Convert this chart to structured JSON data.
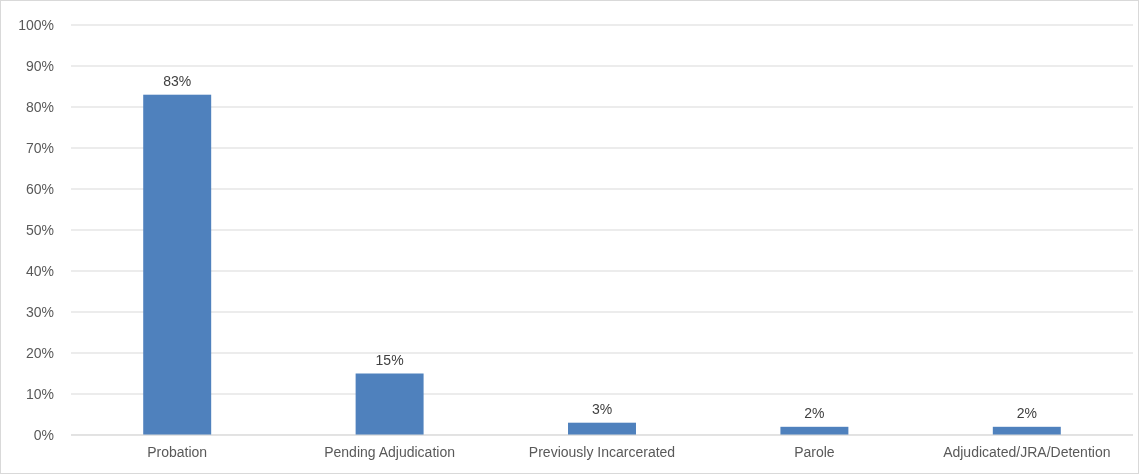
{
  "chart_data": {
    "type": "bar",
    "categories": [
      "Probation",
      "Pending Adjudication",
      "Previously Incarcerated",
      "Parole",
      "Adjudicated/JRA/Detention"
    ],
    "values": [
      83,
      15,
      3,
      2,
      2
    ],
    "value_labels": [
      "83%",
      "15%",
      "3%",
      "2%",
      "2%"
    ],
    "color": "#4f81bd",
    "ylim": [
      0,
      100
    ],
    "yticks": [
      {
        "value": 0,
        "label": "0%"
      },
      {
        "value": 10,
        "label": "10%"
      },
      {
        "value": 20,
        "label": "20%"
      },
      {
        "value": 30,
        "label": "30%"
      },
      {
        "value": 40,
        "label": "40%"
      },
      {
        "value": 50,
        "label": "50%"
      },
      {
        "value": 60,
        "label": "60%"
      },
      {
        "value": 70,
        "label": "70%"
      },
      {
        "value": 80,
        "label": "80%"
      },
      {
        "value": 90,
        "label": "90%"
      },
      {
        "value": 100,
        "label": "100%"
      }
    ],
    "grid": "y"
  }
}
